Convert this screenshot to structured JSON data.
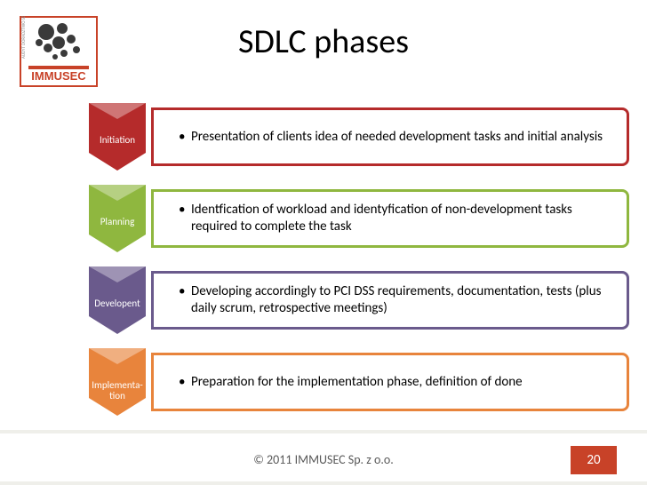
{
  "title": "SDLC phases",
  "logo": {
    "brand": "IMMUSEC",
    "border_color": "#c84228",
    "text_color": "#c84228",
    "blob_color": "#3a3a3a"
  },
  "phases": [
    {
      "label": "Initiation",
      "color": "#b52b2b",
      "content": "Presentation of clients idea of needed development tasks and initial analysis"
    },
    {
      "label": "Planning",
      "color": "#8fb73f",
      "content": "Identfication of workload and identyfication of non-development tasks required to complete the task"
    },
    {
      "label": "Developent",
      "color": "#6a5a8c",
      "content": "Developing accordingly to PCI DSS requirements, documentation, tests (plus daily scrum, retrospective meetings)"
    },
    {
      "label": "Implementa-tion",
      "color": "#e8843c",
      "content": "Preparation for the implementation phase, definition of done"
    }
  ],
  "footer": {
    "copyright": "© 2011 IMMUSEC  Sp. z o.o.",
    "page_number": "20",
    "badge_color": "#c84228"
  }
}
